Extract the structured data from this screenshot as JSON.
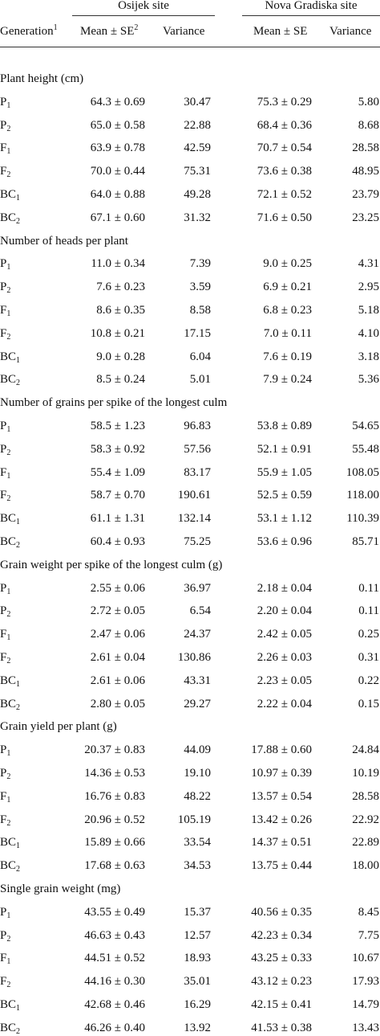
{
  "header": {
    "site1": "Osijek site",
    "site2": "Nova Gradiska site",
    "generation": "Generation",
    "generation_sup": "1",
    "mean_se_1": "Mean ± SE",
    "mean_se_1_sup": "2",
    "variance_1": "Variance",
    "mean_se_2": "Mean ± SE",
    "variance_2": "Variance"
  },
  "sections": [
    {
      "title": "Plant height (cm)",
      "rows": [
        {
          "gen": "P",
          "sub": "1",
          "m1": "64.3 ± 0.69",
          "v1": "30.47",
          "m2": "75.3 ± 0.29",
          "v2": "5.80"
        },
        {
          "gen": "P",
          "sub": "2",
          "m1": "65.0 ± 0.58",
          "v1": "22.88",
          "m2": "68.4 ± 0.36",
          "v2": "8.68"
        },
        {
          "gen": "F",
          "sub": "1",
          "m1": "63.9 ± 0.78",
          "v1": "42.59",
          "m2": "70.7 ± 0.54",
          "v2": "28.58"
        },
        {
          "gen": "F",
          "sub": "2",
          "m1": "70.0 ± 0.44",
          "v1": "75.31",
          "m2": "73.6 ± 0.38",
          "v2": "48.95"
        },
        {
          "gen": "BC",
          "sub": "1",
          "m1": "64.0 ± 0.88",
          "v1": "49.28",
          "m2": "72.1 ± 0.52",
          "v2": "23.79"
        },
        {
          "gen": "BC",
          "sub": "2",
          "m1": "67.1 ± 0.60",
          "v1": "31.32",
          "m2": "71.6 ± 0.50",
          "v2": "23.25"
        }
      ]
    },
    {
      "title": "Number of heads per plant",
      "rows": [
        {
          "gen": "P",
          "sub": "1",
          "m1": "11.0 ± 0.34",
          "v1": "7.39",
          "m2": "9.0 ± 0.25",
          "v2": "4.31"
        },
        {
          "gen": "P",
          "sub": "2",
          "m1": "7.6 ± 0.23",
          "v1": "3.59",
          "m2": "6.9 ± 0.21",
          "v2": "2.95"
        },
        {
          "gen": "F",
          "sub": "1",
          "m1": "8.6 ± 0.35",
          "v1": "8.58",
          "m2": "6.8 ± 0.23",
          "v2": "5.18"
        },
        {
          "gen": "F",
          "sub": "2",
          "m1": "10.8 ± 0.21",
          "v1": "17.15",
          "m2": "7.0 ± 0.11",
          "v2": "4.10"
        },
        {
          "gen": "BC",
          "sub": "1",
          "m1": "9.0 ± 0.28",
          "v1": "6.04",
          "m2": "7.6 ± 0.19",
          "v2": "3.18"
        },
        {
          "gen": "BC",
          "sub": "2",
          "m1": "8.5 ± 0.24",
          "v1": "5.01",
          "m2": "7.9 ± 0.24",
          "v2": "5.36"
        }
      ]
    },
    {
      "title": "Number of grains per spike of the longest culm",
      "rows": [
        {
          "gen": "P",
          "sub": "1",
          "m1": "58.5 ± 1.23",
          "v1": "96.83",
          "m2": "53.8 ± 0.89",
          "v2": "54.65"
        },
        {
          "gen": "P",
          "sub": "2",
          "m1": "58.3 ± 0.92",
          "v1": "57.56",
          "m2": "52.1 ± 0.91",
          "v2": "55.48"
        },
        {
          "gen": "F",
          "sub": "1",
          "m1": "55.4 ± 1.09",
          "v1": "83.17",
          "m2": "55.9 ± 1.05",
          "v2": "108.05"
        },
        {
          "gen": "F",
          "sub": "2",
          "m1": "58.7 ± 0.70",
          "v1": "190.61",
          "m2": "52.5 ± 0.59",
          "v2": "118.00"
        },
        {
          "gen": "BC",
          "sub": "1",
          "m1": "61.1 ± 1.31",
          "v1": "132.14",
          "m2": "53.1 ± 1.12",
          "v2": "110.39"
        },
        {
          "gen": "BC",
          "sub": "2",
          "m1": "60.4 ± 0.93",
          "v1": "75.25",
          "m2": "53.6 ± 0.96",
          "v2": "85.71"
        }
      ]
    },
    {
      "title": "Grain weight per spike of the longest culm (g)",
      "rows": [
        {
          "gen": "P",
          "sub": "1",
          "m1": "2.55 ± 0.06",
          "v1": "36.97",
          "m2": "2.18 ± 0.04",
          "v2": "0.11"
        },
        {
          "gen": "P",
          "sub": "2",
          "m1": "2.72 ± 0.05",
          "v1": "6.54",
          "m2": "2.20 ± 0.04",
          "v2": "0.11"
        },
        {
          "gen": "F",
          "sub": "1",
          "m1": "2.47 ± 0.06",
          "v1": "24.37",
          "m2": "2.42 ± 0.05",
          "v2": "0.25"
        },
        {
          "gen": "F",
          "sub": "2",
          "m1": "2.61 ± 0.04",
          "v1": "130.86",
          "m2": "2.26 ± 0.03",
          "v2": "0.31"
        },
        {
          "gen": "BC",
          "sub": "1",
          "m1": "2.61 ± 0.06",
          "v1": "43.31",
          "m2": "2.23 ± 0.05",
          "v2": "0.22"
        },
        {
          "gen": "BC",
          "sub": "2",
          "m1": "2.80 ± 0.05",
          "v1": "29.27",
          "m2": "2.22 ± 0.04",
          "v2": "0.15"
        }
      ]
    },
    {
      "title": "Grain yield per plant (g)",
      "rows": [
        {
          "gen": "P",
          "sub": "1",
          "m1": "20.37 ± 0.83",
          "v1": "44.09",
          "m2": "17.88 ± 0.60",
          "v2": "24.84"
        },
        {
          "gen": "P",
          "sub": "2",
          "m1": "14.36 ± 0.53",
          "v1": "19.10",
          "m2": "10.97 ± 0.39",
          "v2": "10.19"
        },
        {
          "gen": "F",
          "sub": "1",
          "m1": "16.76 ± 0.83",
          "v1": "48.22",
          "m2": "13.57 ± 0.54",
          "v2": "28.58"
        },
        {
          "gen": "F",
          "sub": "2",
          "m1": "20.96 ± 0.52",
          "v1": "105.19",
          "m2": "13.42 ± 0.26",
          "v2": "22.92"
        },
        {
          "gen": "BC",
          "sub": "1",
          "m1": "15.89 ± 0.66",
          "v1": "33.54",
          "m2": "14.37 ± 0.51",
          "v2": "22.89"
        },
        {
          "gen": "BC",
          "sub": "2",
          "m1": "17.68 ± 0.63",
          "v1": "34.53",
          "m2": "13.75 ± 0.44",
          "v2": "18.00"
        }
      ]
    },
    {
      "title": "Single grain weight (mg)",
      "rows": [
        {
          "gen": "P",
          "sub": "1",
          "m1": "43.55 ± 0.49",
          "v1": "15.37",
          "m2": "40.56 ± 0.35",
          "v2": "8.45"
        },
        {
          "gen": "P",
          "sub": "2",
          "m1": "46.63 ± 0.43",
          "v1": "12.57",
          "m2": "42.23 ± 0.34",
          "v2": "7.75"
        },
        {
          "gen": "F",
          "sub": "1",
          "m1": "44.51 ± 0.52",
          "v1": "18.93",
          "m2": "43.25 ± 0.33",
          "v2": "10.67"
        },
        {
          "gen": "F",
          "sub": "2",
          "m1": "44.16 ± 0.30",
          "v1": "35.01",
          "m2": "43.12 ± 0.23",
          "v2": "17.93"
        },
        {
          "gen": "BC",
          "sub": "1",
          "m1": "42.68 ± 0.46",
          "v1": "16.29",
          "m2": "42.15 ± 0.41",
          "v2": "14.79"
        },
        {
          "gen": "BC",
          "sub": "2",
          "m1": "46.26 ± 0.40",
          "v1": "13.92",
          "m2": "41.53 ± 0.38",
          "v2": "13.43"
        }
      ]
    }
  ]
}
